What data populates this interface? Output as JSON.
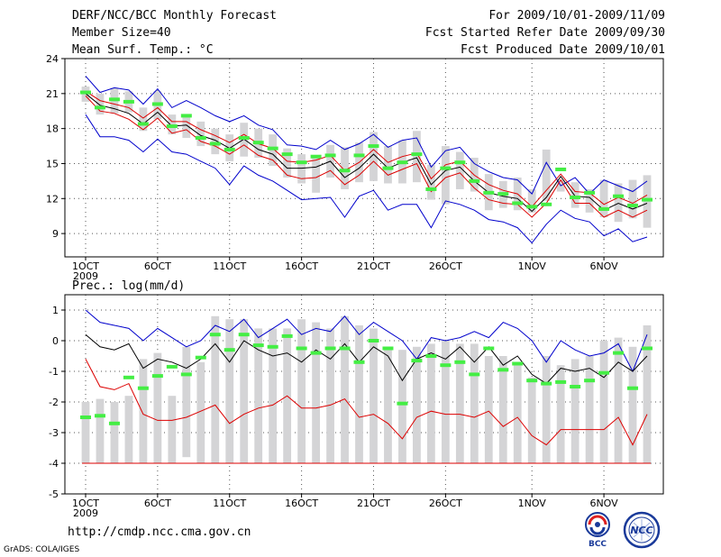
{
  "header": {
    "title": "DERF/NCC/BCC Monthly Forecast",
    "member_size": "Member Size=40",
    "variable": "Mean Surf. Temp.: °C",
    "period": "For 2009/10/01-2009/11/09",
    "fcst_started": "Fcst Started Refer Date 2009/09/30",
    "fcst_produced": "Fcst Produced Date 2009/10/01"
  },
  "footer": {
    "url": "http://cmdp.ncc.cma.gov.cn",
    "grads": "GrADS: COLA/IGES",
    "logo_bcc": "BCC",
    "logo_ncc": "NCC"
  },
  "chart_data": [
    {
      "type": "line",
      "name": "temperature",
      "title": "Mean Surf. Temp.: °C",
      "ylim": [
        7,
        24
      ],
      "yticks": [
        9,
        12,
        15,
        18,
        21,
        24
      ],
      "x_tick_labels": [
        {
          "day": 1,
          "label": "1OCT"
        },
        {
          "day": 6,
          "label": "6OCT"
        },
        {
          "day": 11,
          "label": "11OCT"
        },
        {
          "day": 16,
          "label": "16OCT"
        },
        {
          "day": 21,
          "label": "21OCT"
        },
        {
          "day": 26,
          "label": "26OCT"
        },
        {
          "day": 32,
          "label": "1NOV"
        },
        {
          "day": 37,
          "label": "6NOV"
        }
      ],
      "year_label": "2009",
      "days": [
        1,
        2,
        3,
        4,
        5,
        6,
        7,
        8,
        9,
        10,
        11,
        12,
        13,
        14,
        15,
        16,
        17,
        18,
        19,
        20,
        21,
        22,
        23,
        24,
        25,
        26,
        27,
        28,
        29,
        30,
        31,
        32,
        33,
        34,
        35,
        36,
        37,
        38,
        39,
        40
      ],
      "box_low": [
        20.3,
        19.2,
        19.3,
        19.4,
        17.8,
        18.8,
        17.5,
        17.2,
        16.5,
        15.8,
        15.2,
        15.6,
        15.5,
        14.8,
        13.8,
        13.3,
        12.5,
        13.8,
        12.8,
        13.4,
        13.5,
        13.3,
        13.3,
        13.4,
        11.9,
        11.5,
        12.8,
        12.6,
        11.0,
        11.2,
        11.0,
        10.8,
        11.8,
        12.6,
        11.2,
        10.8,
        10.4,
        10.0,
        10.3,
        9.5
      ],
      "box_high": [
        21.6,
        21.0,
        21.5,
        21.2,
        19.8,
        21.2,
        19.2,
        19.2,
        18.6,
        18.0,
        17.5,
        18.5,
        18.0,
        17.5,
        16.3,
        15.8,
        15.5,
        16.6,
        16.4,
        16.8,
        17.7,
        16.5,
        17.0,
        17.8,
        14.9,
        16.5,
        16.0,
        15.5,
        14.1,
        13.5,
        13.8,
        12.8,
        16.2,
        13.6,
        13.4,
        12.8,
        13.6,
        13.3,
        13.6,
        14.0
      ],
      "series": [
        {
          "name": "Maximum",
          "color": "#0000cc",
          "values": [
            22.5,
            21.1,
            21.5,
            21.3,
            20.1,
            21.4,
            19.8,
            20.4,
            19.8,
            19.1,
            18.6,
            19.1,
            18.3,
            17.9,
            16.6,
            16.5,
            16.2,
            17.0,
            16.2,
            16.7,
            17.5,
            16.4,
            17.0,
            17.2,
            14.7,
            16.1,
            16.4,
            15.0,
            14.3,
            13.8,
            13.6,
            12.4,
            15.1,
            13.1,
            13.8,
            12.4,
            13.6,
            13.1,
            12.6,
            13.5
          ]
        },
        {
          "name": "Mean +",
          "color": "#dd0000",
          "values": [
            21.2,
            20.4,
            20.1,
            19.8,
            18.9,
            19.8,
            18.6,
            18.6,
            17.9,
            17.4,
            16.8,
            17.5,
            16.7,
            16.3,
            15.2,
            15.1,
            15.3,
            15.7,
            14.4,
            15.1,
            16.2,
            15.1,
            15.6,
            15.9,
            13.7,
            14.9,
            15.2,
            14.0,
            13.2,
            12.7,
            12.4,
            11.3,
            12.7,
            14.1,
            12.6,
            12.5,
            11.5,
            12.1,
            11.6,
            12.3
          ]
        },
        {
          "name": "Mean",
          "color": "#000000",
          "values": [
            21.0,
            20.0,
            19.7,
            19.3,
            18.4,
            19.4,
            18.2,
            18.3,
            17.4,
            17.0,
            16.3,
            17.1,
            16.2,
            15.8,
            14.6,
            14.6,
            14.7,
            15.2,
            13.8,
            14.6,
            15.8,
            14.6,
            15.1,
            15.5,
            13.2,
            14.4,
            14.7,
            13.5,
            12.5,
            12.2,
            12.0,
            10.9,
            12.1,
            13.9,
            12.2,
            12.1,
            11.0,
            11.6,
            11.1,
            11.6
          ]
        },
        {
          "name": "Mean -",
          "color": "#dd0000",
          "values": [
            20.8,
            19.5,
            19.3,
            18.8,
            17.9,
            18.9,
            17.6,
            17.9,
            16.9,
            16.5,
            15.8,
            16.6,
            15.7,
            15.3,
            14.0,
            13.7,
            13.8,
            14.4,
            13.2,
            14.0,
            15.2,
            14.0,
            14.5,
            15.0,
            12.6,
            13.8,
            14.2,
            12.9,
            11.9,
            11.6,
            11.5,
            10.4,
            11.6,
            13.6,
            11.6,
            11.6,
            10.4,
            11.0,
            10.4,
            11.0
          ]
        },
        {
          "name": "Minimum",
          "color": "#0000cc",
          "values": [
            19.2,
            17.3,
            17.3,
            17.0,
            16.0,
            17.1,
            16.0,
            15.8,
            15.2,
            14.6,
            13.2,
            14.8,
            14.0,
            13.5,
            12.7,
            11.9,
            12.0,
            12.1,
            10.4,
            12.2,
            12.7,
            11.0,
            11.5,
            11.5,
            9.5,
            11.8,
            11.5,
            11.0,
            10.2,
            10.0,
            9.5,
            8.2,
            9.8,
            11.0,
            10.3,
            10.0,
            8.8,
            9.4,
            8.3,
            8.7
          ]
        }
      ],
      "markers": {
        "name": "Median member",
        "color": "#44ee44",
        "values": [
          21.1,
          19.8,
          20.5,
          20.3,
          18.4,
          20.1,
          18.2,
          19.1,
          17.2,
          16.7,
          16.2,
          17.2,
          16.8,
          16.3,
          15.8,
          15.1,
          15.6,
          15.7,
          14.4,
          15.7,
          16.5,
          14.6,
          15.1,
          15.8,
          12.8,
          14.6,
          15.1,
          13.5,
          12.5,
          12.4,
          11.6,
          11.3,
          11.5,
          14.5,
          12.1,
          12.5,
          11.1,
          12.2,
          11.4,
          11.9
        ]
      }
    },
    {
      "type": "line",
      "name": "precipitation",
      "title": "Prec.: log(mm/d)",
      "ylim": [
        -5,
        1.5
      ],
      "yticks": [
        -5,
        -4,
        -3,
        -2,
        -1,
        0,
        1
      ],
      "x_tick_labels": [
        {
          "day": 1,
          "label": "1OCT"
        },
        {
          "day": 6,
          "label": "6OCT"
        },
        {
          "day": 11,
          "label": "11OCT"
        },
        {
          "day": 16,
          "label": "16OCT"
        },
        {
          "day": 21,
          "label": "21OCT"
        },
        {
          "day": 26,
          "label": "26OCT"
        },
        {
          "day": 32,
          "label": "1NOV"
        },
        {
          "day": 37,
          "label": "6NOV"
        }
      ],
      "year_label": "2009",
      "days": [
        1,
        2,
        3,
        4,
        5,
        6,
        7,
        8,
        9,
        10,
        11,
        12,
        13,
        14,
        15,
        16,
        17,
        18,
        19,
        20,
        21,
        22,
        23,
        24,
        25,
        26,
        27,
        28,
        29,
        30,
        31,
        32,
        33,
        34,
        35,
        36,
        37,
        38,
        39,
        40
      ],
      "box_low": [
        -4,
        -4,
        -4,
        -4,
        -4,
        -4,
        -4,
        -3.8,
        -4,
        -4,
        -4,
        -4,
        -4,
        -4,
        -4,
        -4,
        -4,
        -4,
        -4,
        -4,
        -4,
        -4,
        -4,
        -4,
        -4,
        -4,
        -4,
        -4,
        -4,
        -4,
        -4,
        -4,
        -4,
        -4,
        -4,
        -4,
        -4,
        -4,
        -4,
        -4
      ],
      "box_high": [
        -2.0,
        -1.9,
        -2.0,
        -1.8,
        -0.6,
        -0.4,
        -1.8,
        -0.2,
        -0.7,
        0.8,
        0.7,
        0.7,
        0.4,
        0.4,
        0.4,
        0.7,
        0.6,
        0.4,
        0.8,
        0.5,
        0.4,
        -0.2,
        -0.3,
        -0.2,
        -0.1,
        0.0,
        -0.1,
        -0.1,
        -0.5,
        -0.5,
        -0.7,
        -1.2,
        -0.5,
        -0.8,
        -0.6,
        -0.5,
        0.0,
        0.1,
        -0.2,
        0.5
      ],
      "series": [
        {
          "name": "Maximum",
          "color": "#0000cc",
          "values": [
            1.0,
            0.6,
            0.5,
            0.4,
            0.0,
            0.4,
            0.1,
            -0.2,
            0.0,
            0.5,
            0.3,
            0.7,
            0.1,
            0.4,
            0.7,
            0.2,
            0.4,
            0.3,
            0.8,
            0.2,
            0.6,
            0.3,
            0.0,
            -0.6,
            0.1,
            0.0,
            0.1,
            0.3,
            0.1,
            0.6,
            0.4,
            0.0,
            -0.7,
            0.0,
            -0.3,
            -0.5,
            -0.4,
            -0.1,
            -1.0,
            0.2
          ]
        },
        {
          "name": "Mean",
          "color": "#000000",
          "values": [
            0.2,
            -0.2,
            -0.3,
            -0.1,
            -0.9,
            -0.6,
            -0.7,
            -0.9,
            -0.6,
            -0.1,
            -0.7,
            0.0,
            -0.3,
            -0.5,
            -0.4,
            -0.7,
            -0.3,
            -0.6,
            -0.1,
            -0.7,
            -0.2,
            -0.5,
            -1.3,
            -0.6,
            -0.4,
            -0.6,
            -0.2,
            -0.7,
            -0.2,
            -0.8,
            -0.5,
            -1.1,
            -1.4,
            -0.9,
            -1.0,
            -0.9,
            -1.2,
            -0.7,
            -1.0,
            -0.5
          ]
        },
        {
          "name": "Minimum",
          "color": "#dd0000",
          "values": [
            -0.6,
            -1.5,
            -1.6,
            -1.4,
            -2.4,
            -2.6,
            -2.6,
            -2.5,
            -2.3,
            -2.1,
            -2.7,
            -2.4,
            -2.2,
            -2.1,
            -1.8,
            -2.2,
            -2.2,
            -2.1,
            -1.9,
            -2.5,
            -2.4,
            -2.7,
            -3.2,
            -2.5,
            -2.3,
            -2.4,
            -2.4,
            -2.5,
            -2.3,
            -2.8,
            -2.5,
            -3.1,
            -3.4,
            -2.9,
            -2.9,
            -2.9,
            -2.9,
            -2.5,
            -3.4,
            -2.4
          ]
        }
      ],
      "floor_line": {
        "name": "Floor",
        "color": "#dd0000",
        "value": -4
      },
      "markers": {
        "name": "Median member",
        "color": "#44ee44",
        "values": [
          -2.5,
          -2.45,
          -2.7,
          -1.2,
          -1.55,
          -1.15,
          -0.85,
          -1.1,
          -0.55,
          0.2,
          -0.3,
          0.2,
          -0.15,
          -0.2,
          0.15,
          -0.25,
          -0.4,
          -0.25,
          -0.25,
          -0.7,
          0.0,
          -0.25,
          -2.05,
          -0.65,
          -0.5,
          -0.8,
          -0.7,
          -1.1,
          -0.25,
          -0.95,
          -0.75,
          -1.3,
          -1.4,
          -1.35,
          -1.5,
          -1.3,
          -1.05,
          -0.4,
          -1.55,
          -0.25
        ]
      }
    }
  ]
}
